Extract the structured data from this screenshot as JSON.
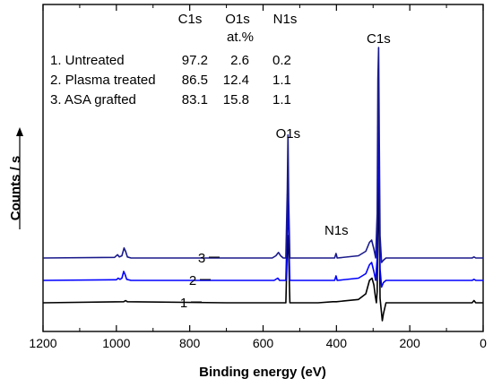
{
  "chart_data": {
    "type": "line",
    "xlabel": "Binding energy (eV)",
    "ylabel": "Counts / s",
    "xlim": [
      1200,
      0
    ],
    "x_ticks": [
      "1200",
      "1000",
      "800",
      "600",
      "400",
      "200",
      "0"
    ],
    "table": {
      "headers": [
        "C1s",
        "O1s",
        "N1s"
      ],
      "unit": "at.%",
      "rows": [
        {
          "label": "1. Untreated",
          "values": [
            "97.2",
            "2.6",
            "0.2"
          ]
        },
        {
          "label": "2. Plasma treated",
          "values": [
            "86.5",
            "12.4",
            "1.1"
          ]
        },
        {
          "label": "3. ASA grafted",
          "values": [
            "83.1",
            "15.8",
            "1.1"
          ]
        }
      ]
    },
    "peak_labels": [
      {
        "text": "C1s",
        "x": 285
      },
      {
        "text": "O1s",
        "x": 532
      },
      {
        "text": "N1s",
        "x": 400
      }
    ],
    "series": [
      {
        "name": "1",
        "color": "#000000",
        "baseline": 0.0,
        "points": [
          [
            1200,
            0.0
          ],
          [
            980,
            0.005
          ],
          [
            975,
            0.01
          ],
          [
            970,
            0.005
          ],
          [
            700,
            0.0
          ],
          [
            545,
            0.0
          ],
          [
            538,
            0.0
          ],
          [
            534,
            0.25
          ],
          [
            532,
            0.3
          ],
          [
            530,
            0.2
          ],
          [
            527,
            0.0
          ],
          [
            450,
            0.0
          ],
          [
            410,
            0.005
          ],
          [
            400,
            0.005
          ],
          [
            340,
            0.015
          ],
          [
            320,
            0.04
          ],
          [
            310,
            0.1
          ],
          [
            303,
            0.11
          ],
          [
            298,
            0.08
          ],
          [
            294,
            0.03
          ],
          [
            291,
            0.0
          ],
          [
            289,
            0.05
          ],
          [
            287,
            0.35
          ],
          [
            285,
            0.55
          ],
          [
            283,
            0.3
          ],
          [
            281,
            0.02
          ],
          [
            275,
            -0.08
          ],
          [
            272,
            -0.05
          ],
          [
            265,
            0.0
          ],
          [
            30,
            0.0
          ],
          [
            25,
            0.01
          ],
          [
            20,
            0.0
          ],
          [
            0,
            0.0
          ]
        ]
      },
      {
        "name": "2",
        "color": "#0000ff",
        "baseline": 0.1,
        "points": [
          [
            1200,
            0.1
          ],
          [
            1000,
            0.103
          ],
          [
            995,
            0.11
          ],
          [
            990,
            0.105
          ],
          [
            985,
            0.11
          ],
          [
            980,
            0.14
          ],
          [
            976,
            0.125
          ],
          [
            972,
            0.105
          ],
          [
            960,
            0.1
          ],
          [
            700,
            0.1
          ],
          [
            570,
            0.1
          ],
          [
            560,
            0.11
          ],
          [
            555,
            0.1
          ],
          [
            545,
            0.1
          ],
          [
            538,
            0.1
          ],
          [
            534,
            0.35
          ],
          [
            532,
            0.48
          ],
          [
            530,
            0.3
          ],
          [
            527,
            0.1
          ],
          [
            450,
            0.1
          ],
          [
            405,
            0.1
          ],
          [
            401,
            0.12
          ],
          [
            398,
            0.1
          ],
          [
            340,
            0.11
          ],
          [
            320,
            0.13
          ],
          [
            310,
            0.17
          ],
          [
            304,
            0.18
          ],
          [
            298,
            0.14
          ],
          [
            293,
            0.1
          ],
          [
            289,
            0.2
          ],
          [
            287,
            0.6
          ],
          [
            285,
            0.82
          ],
          [
            283,
            0.5
          ],
          [
            281,
            0.15
          ],
          [
            277,
            0.07
          ],
          [
            272,
            0.09
          ],
          [
            265,
            0.1
          ],
          [
            30,
            0.1
          ],
          [
            25,
            0.105
          ],
          [
            20,
            0.1
          ],
          [
            0,
            0.1
          ]
        ]
      },
      {
        "name": "3",
        "color": "#1a1a8c",
        "baseline": 0.2,
        "points": [
          [
            1200,
            0.2
          ],
          [
            1005,
            0.203
          ],
          [
            997,
            0.215
          ],
          [
            992,
            0.205
          ],
          [
            985,
            0.21
          ],
          [
            979,
            0.245
          ],
          [
            975,
            0.23
          ],
          [
            970,
            0.205
          ],
          [
            960,
            0.2
          ],
          [
            700,
            0.2
          ],
          [
            575,
            0.2
          ],
          [
            565,
            0.21
          ],
          [
            558,
            0.225
          ],
          [
            552,
            0.21
          ],
          [
            545,
            0.2
          ],
          [
            538,
            0.2
          ],
          [
            534,
            0.5
          ],
          [
            532,
            0.75
          ],
          [
            530,
            0.45
          ],
          [
            527,
            0.2
          ],
          [
            450,
            0.2
          ],
          [
            405,
            0.2
          ],
          [
            401,
            0.22
          ],
          [
            398,
            0.2
          ],
          [
            340,
            0.21
          ],
          [
            320,
            0.23
          ],
          [
            310,
            0.27
          ],
          [
            304,
            0.28
          ],
          [
            298,
            0.24
          ],
          [
            293,
            0.2
          ],
          [
            289,
            0.4
          ],
          [
            287,
            1.0
          ],
          [
            285,
            1.14
          ],
          [
            283,
            0.7
          ],
          [
            281,
            0.3
          ],
          [
            277,
            0.18
          ],
          [
            272,
            0.19
          ],
          [
            265,
            0.2
          ],
          [
            30,
            0.2
          ],
          [
            25,
            0.205
          ],
          [
            20,
            0.2
          ],
          [
            0,
            0.2
          ]
        ]
      }
    ],
    "ylim": [
      -0.1,
      1.22
    ],
    "grid": false,
    "legend": "none"
  }
}
